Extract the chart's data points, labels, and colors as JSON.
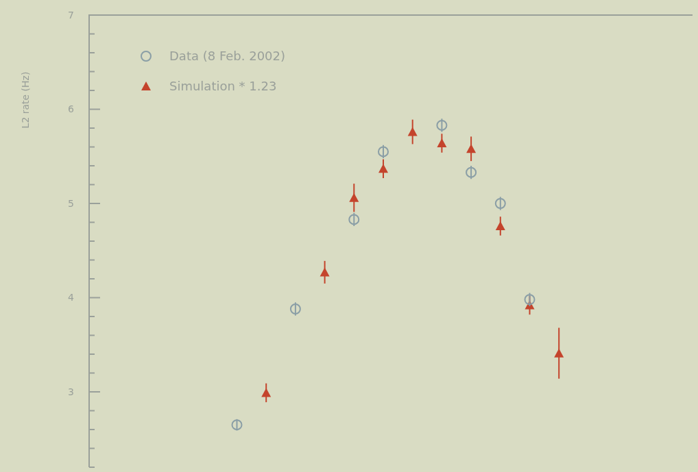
{
  "chart_data": {
    "type": "scatter",
    "ylabel": "L2 rate (Hz)",
    "categories": [
      null,
      null,
      null,
      null,
      null,
      null,
      null,
      null,
      null,
      null,
      null,
      null,
      null,
      null,
      null,
      null,
      null,
      null,
      null,
      null,
      null
    ],
    "series": [
      {
        "name": "Data (8 Feb. 2002)",
        "color": "#8a9ea6",
        "marker": "circle",
        "values": [
          null,
          null,
          null,
          null,
          null,
          2.65,
          null,
          3.88,
          null,
          4.83,
          5.55,
          null,
          5.83,
          5.33,
          5.0,
          3.98,
          null,
          null,
          null,
          null,
          null
        ],
        "errors": [
          null,
          null,
          null,
          null,
          null,
          0.06,
          null,
          0.07,
          null,
          0.07,
          0.07,
          null,
          0.07,
          0.07,
          0.07,
          0.07,
          null,
          null,
          null,
          null,
          null
        ]
      },
      {
        "name": "Simulation * 1.23",
        "color": "#c4442c",
        "marker": "triangle",
        "values": [
          null,
          null,
          null,
          null,
          null,
          null,
          2.99,
          null,
          4.27,
          5.06,
          5.37,
          5.76,
          5.64,
          5.58,
          4.76,
          3.92,
          3.41,
          null,
          null,
          null,
          null
        ],
        "errors": [
          null,
          null,
          null,
          null,
          null,
          null,
          0.1,
          null,
          0.12,
          0.15,
          0.1,
          0.13,
          0.1,
          0.13,
          0.1,
          0.1,
          0.27,
          null,
          null,
          null,
          null
        ]
      }
    ],
    "ylim": [
      2.2,
      7
    ],
    "yticks": [
      {
        "value": 2.2,
        "label": null
      },
      {
        "value": 2.4,
        "label": null
      },
      {
        "value": 2.6,
        "label": null
      },
      {
        "value": 2.8,
        "label": null
      },
      3,
      {
        "value": 3.2,
        "label": null
      },
      {
        "value": 3.4,
        "label": null
      },
      {
        "value": 3.6,
        "label": null
      },
      {
        "value": 3.8,
        "label": null
      },
      4,
      {
        "value": 4.2,
        "label": null
      },
      {
        "value": 4.4,
        "label": null
      },
      {
        "value": 4.6,
        "label": null
      },
      {
        "value": 4.8,
        "label": null
      },
      5,
      {
        "value": 5.2,
        "label": null
      },
      {
        "value": 5.4,
        "label": null
      },
      {
        "value": 5.6,
        "label": null
      },
      {
        "value": 5.8,
        "label": null
      },
      6,
      {
        "value": 6.2,
        "label": null
      },
      {
        "value": 6.4,
        "label": null
      },
      {
        "value": 6.6,
        "label": null
      },
      {
        "value": 6.8,
        "label": null
      },
      7
    ],
    "tick_labels": "y",
    "grid": false,
    "legend": "top left"
  }
}
